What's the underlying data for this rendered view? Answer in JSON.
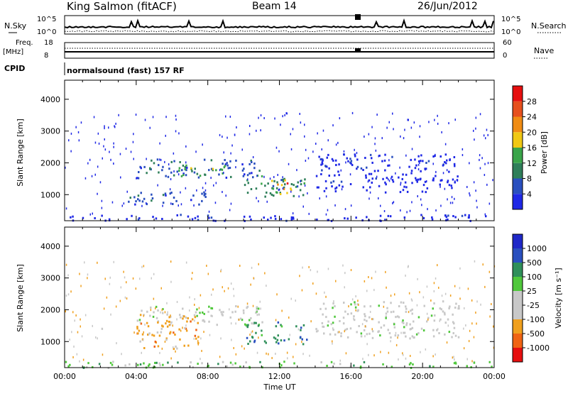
{
  "header": {
    "station": "King Salmon (fitACF)",
    "beam": "Beam 14",
    "date": "26/Jun/2012"
  },
  "strip": {
    "nsky_label": "N.Sky",
    "nsearch_label": "N.Search",
    "noise_ticks_left": [
      "10^5",
      "10^0"
    ],
    "noise_ticks_right": [
      "10^5",
      "10^0"
    ],
    "freq_label": [
      "Freq.",
      "[MHz]"
    ],
    "freq_ticks": [
      "18",
      "8"
    ],
    "nave_label": "Nave",
    "nave_ticks": [
      "60",
      "0"
    ],
    "cpid_label": "CPID",
    "cpid_text": "normalsound (fast) 157 RF"
  },
  "colorbars": {
    "power": {
      "label": "Power [dB]",
      "colors": [
        "#1f28e6",
        "#2a4fbf",
        "#2f7f5a",
        "#3aa54a",
        "#f0c814",
        "#f08c14",
        "#e6501e",
        "#e60f0f"
      ],
      "ticks": [
        "4",
        "8",
        "12",
        "16",
        "20",
        "24",
        "28"
      ]
    },
    "velocity": {
      "label": "Velocity [m s⁻¹]",
      "colors": [
        "#e60f0f",
        "#f06414",
        "#f0a01e",
        "#c8c8c8",
        "#c8c8c8",
        "#50c83c",
        "#2f8f5a",
        "#2a4fbf",
        "#1f28c8"
      ],
      "ticks": [
        "-1000",
        "-500",
        "-100",
        "-25",
        "25",
        "100",
        "500",
        "1000"
      ]
    }
  },
  "chart_data": [
    {
      "type": "heatmap",
      "title": "Power",
      "xlabel": "",
      "ylabel": "Slant Range [km]",
      "xlim": [
        0,
        24
      ],
      "ylim": [
        180,
        4600
      ],
      "xticks": [
        0,
        4,
        8,
        12,
        16,
        20,
        24
      ],
      "yticks": [
        "1000",
        "2000",
        "3000",
        "4000"
      ],
      "ytick_values": [
        1000,
        2000,
        3000,
        4000
      ],
      "regions": [
        {
          "t": [
            4.0,
            11.0
          ],
          "r": [
            1550,
            2150
          ],
          "level": 1
        },
        {
          "t": [
            6.0,
            9.0
          ],
          "r": [
            1600,
            1950
          ],
          "level": 3
        },
        {
          "t": [
            10.0,
            13.5
          ],
          "r": [
            950,
            1650
          ],
          "level": 2
        },
        {
          "t": [
            11.5,
            12.8
          ],
          "r": [
            1050,
            1500
          ],
          "level": 4
        },
        {
          "t": [
            12.1,
            12.6
          ],
          "r": [
            1150,
            1400
          ],
          "level": 6
        },
        {
          "t": [
            3.5,
            8.0
          ],
          "r": [
            700,
            1150
          ],
          "level": 1
        },
        {
          "t": [
            14.0,
            22.0
          ],
          "r": [
            1100,
            2300
          ],
          "level": 0
        },
        {
          "t": [
            0.0,
            24.0
          ],
          "r": [
            200,
            400
          ],
          "level": 0
        }
      ]
    },
    {
      "type": "heatmap",
      "title": "Velocity",
      "xlabel": "Time UT",
      "ylabel": "Slant Range [km]",
      "xlim": [
        0,
        24
      ],
      "ylim": [
        180,
        4600
      ],
      "xticks": [
        "00:00",
        "04:00",
        "08:00",
        "12:00",
        "16:00",
        "20:00",
        "00:00"
      ],
      "ytick_values": [
        1000,
        2000,
        3000,
        4000
      ],
      "yticks": [
        "1000",
        "2000",
        "3000",
        "4000"
      ],
      "regions": [
        {
          "t": [
            4.0,
            11.0
          ],
          "r": [
            1550,
            2150
          ],
          "level": 4
        },
        {
          "t": [
            4.0,
            7.5
          ],
          "r": [
            800,
            1900
          ],
          "level": 2
        },
        {
          "t": [
            10.0,
            13.5
          ],
          "r": [
            950,
            1650
          ],
          "level": 6
        },
        {
          "t": [
            14.0,
            22.0
          ],
          "r": [
            1100,
            2300
          ],
          "level": 4
        },
        {
          "t": [
            0.0,
            24.0
          ],
          "r": [
            200,
            400
          ],
          "level": 5
        }
      ]
    }
  ]
}
